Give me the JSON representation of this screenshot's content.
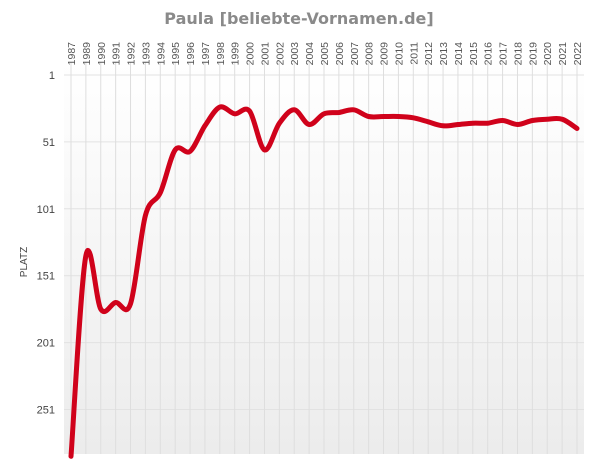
{
  "chart_data": {
    "type": "line",
    "title": "Paula [beliebte-Vornamen.de]",
    "ylabel": "PLATZ",
    "xlabel": "",
    "y_inverted": true,
    "ylim": [
      1,
      286
    ],
    "y_ticks": [
      1,
      51,
      101,
      151,
      201,
      251
    ],
    "x": [
      "1987",
      "1989",
      "1990",
      "1991",
      "1992",
      "1993",
      "1994",
      "1995",
      "1996",
      "1997",
      "1998",
      "1999",
      "2000",
      "2001",
      "2002",
      "2003",
      "2004",
      "2005",
      "2006",
      "2007",
      "2008",
      "2009",
      "2010",
      "2011",
      "2012",
      "2013",
      "2014",
      "2015",
      "2016",
      "2017",
      "2018",
      "2019",
      "2020",
      "2021",
      "2022"
    ],
    "series": [
      {
        "color": "#d0021b",
        "values": [
          286,
          136,
          176,
          171,
          172,
          106,
          89,
          57,
          58,
          39,
          25,
          30,
          28,
          57,
          37,
          27,
          38,
          30,
          29,
          27,
          32,
          32,
          32,
          33,
          36,
          39,
          38,
          37,
          37,
          35,
          38,
          35,
          34,
          34,
          41
        ]
      }
    ],
    "grid": {
      "vertical": true,
      "horizontal": true
    },
    "legend": "none"
  }
}
